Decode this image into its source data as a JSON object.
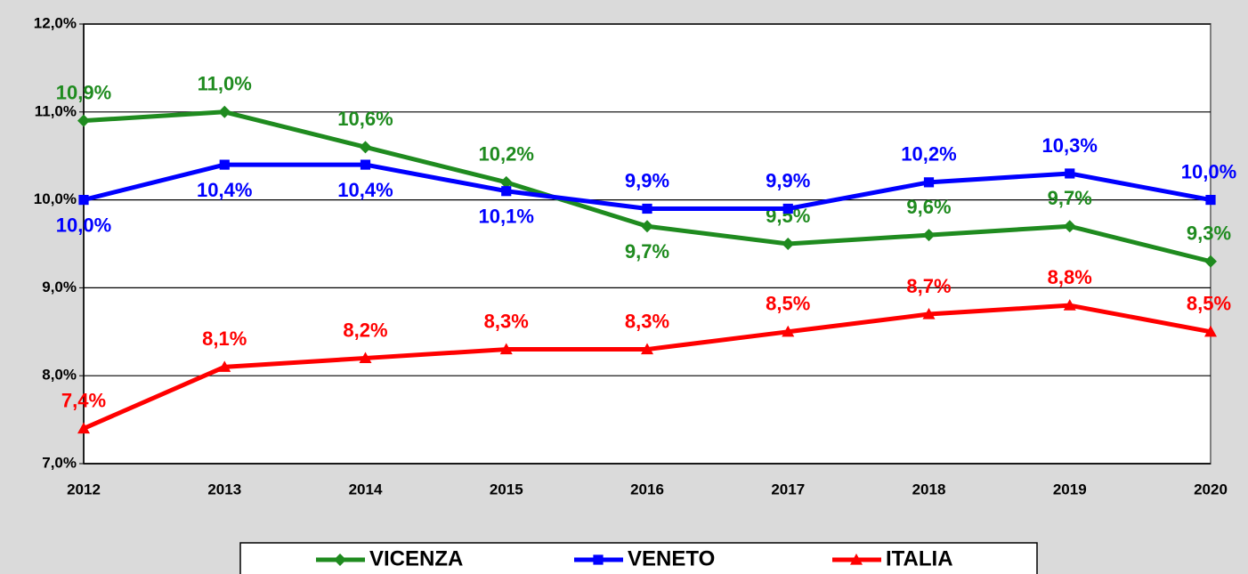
{
  "chart_data": {
    "type": "line",
    "categories": [
      "2012",
      "2013",
      "2014",
      "2015",
      "2016",
      "2017",
      "2018",
      "2019",
      "2020"
    ],
    "series": [
      {
        "name": "VICENZA",
        "color": "#1f8b1f",
        "marker": "diamond",
        "values": [
          10.9,
          11.0,
          10.6,
          10.2,
          9.7,
          9.5,
          9.6,
          9.7,
          9.3
        ],
        "value_labels": [
          "10,9%",
          "11,0%",
          "10,6%",
          "10,2%",
          "9,7%",
          "9,5%",
          "9,6%",
          "9,7%",
          "9,3%"
        ]
      },
      {
        "name": "VENETO",
        "color": "#0000ff",
        "marker": "square",
        "values": [
          10.0,
          10.4,
          10.4,
          10.1,
          9.9,
          9.9,
          10.2,
          10.3,
          10.0
        ],
        "value_labels": [
          "10,0%",
          "10,4%",
          "10,4%",
          "10,1%",
          "9,9%",
          "9,9%",
          "10,2%",
          "10,3%",
          "10,0%"
        ]
      },
      {
        "name": "ITALIA",
        "color": "#ff0000",
        "marker": "triangle",
        "values": [
          7.4,
          8.1,
          8.2,
          8.3,
          8.3,
          8.5,
          8.7,
          8.8,
          8.5
        ],
        "value_labels": [
          "7,4%",
          "8,1%",
          "8,2%",
          "8,3%",
          "8,3%",
          "8,5%",
          "8,7%",
          "8,8%",
          "8,5%"
        ]
      }
    ],
    "ylim": [
      7,
      12
    ],
    "yticks": [
      {
        "value": 7,
        "label": "7,0%"
      },
      {
        "value": 8,
        "label": "8,0%"
      },
      {
        "value": 9,
        "label": "9,0%"
      },
      {
        "value": 10,
        "label": "10,0%"
      },
      {
        "value": 11,
        "label": "11,0%"
      },
      {
        "value": 12,
        "label": "12,0%"
      }
    ],
    "grid": true,
    "legend": "bottom"
  }
}
